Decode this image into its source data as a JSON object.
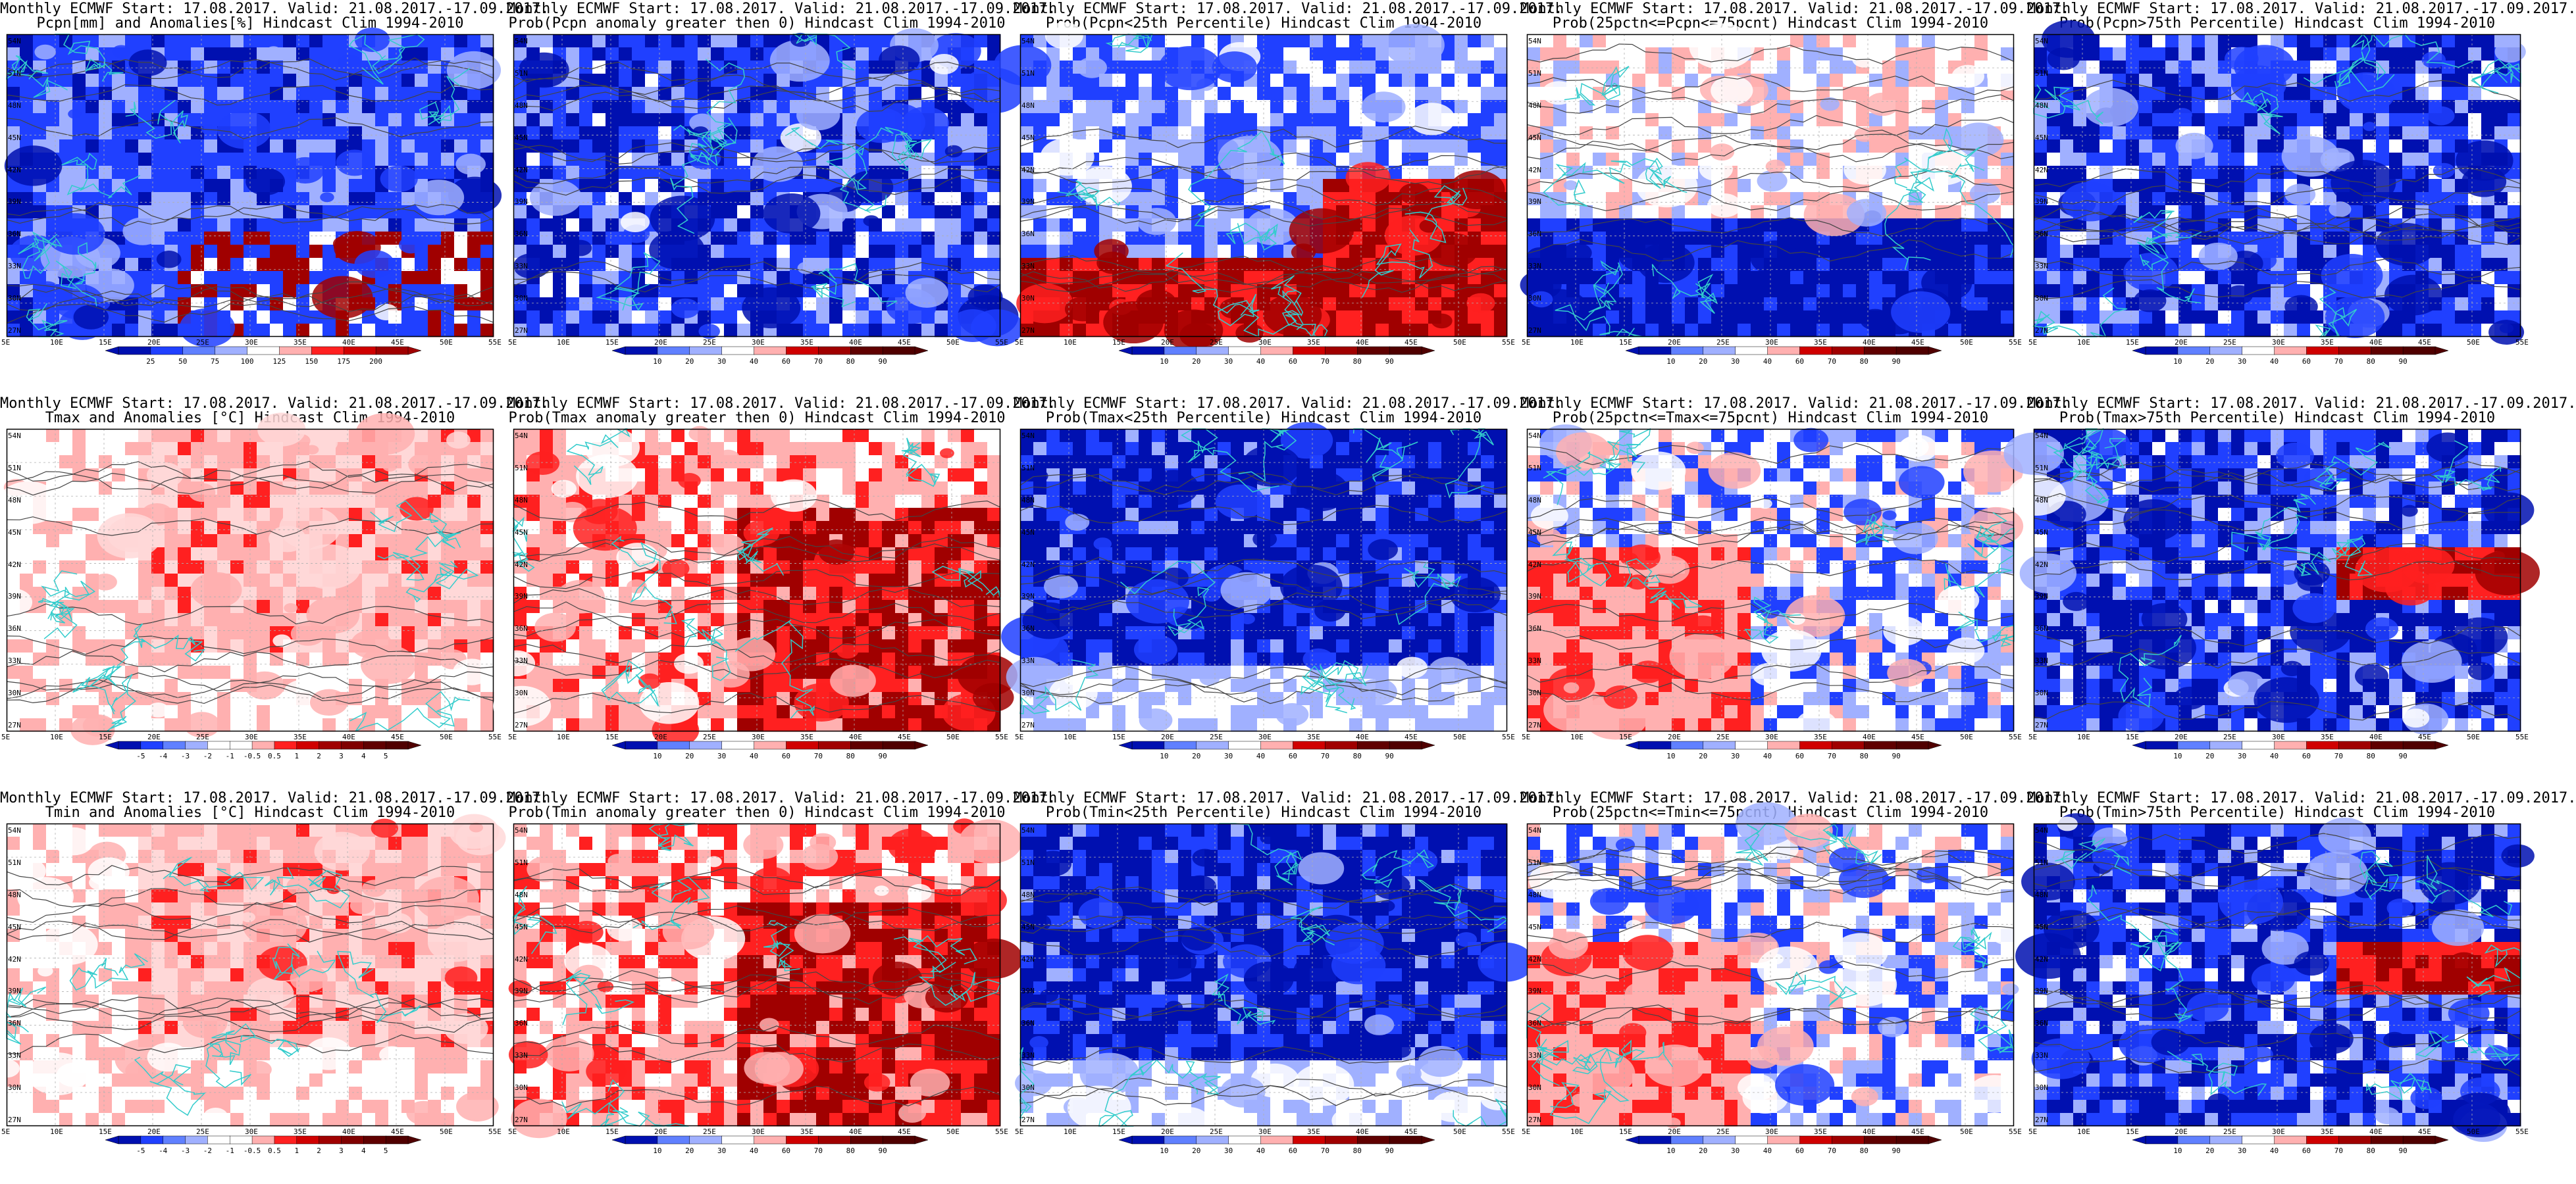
{
  "layout": {
    "columns": 5,
    "rows": 3
  },
  "axes": {
    "lat_labels": [
      "54N",
      "51N",
      "48N",
      "45N",
      "42N",
      "39N",
      "36N",
      "33N",
      "30N",
      "27N"
    ],
    "lon_labels": [
      "5E",
      "10E",
      "15E",
      "20E",
      "25E",
      "30E",
      "35E",
      "40E",
      "45E",
      "50E",
      "55E"
    ],
    "lon_range": [
      5,
      55
    ],
    "lat_range": [
      25,
      55
    ]
  },
  "colors": {
    "coast": "#33cccc",
    "contour": "#444444",
    "blue_dark": "#0010b0",
    "blue": "#2040ff",
    "blue_light": "#a0b0ff",
    "red_light": "#ffb0b0",
    "red": "#ff2020",
    "red_dark": "#a00000"
  },
  "scales": {
    "pcpn_anom": [
      "25",
      "50",
      "75",
      "100",
      "125",
      "150",
      "175",
      "200"
    ],
    "temp_anom": [
      "-5",
      "-4",
      "-3",
      "-2",
      "-1",
      "-0.5",
      "0.5",
      "1",
      "2",
      "3",
      "4",
      "5"
    ],
    "prob": [
      "10",
      "20",
      "30",
      "40",
      "60",
      "70",
      "80",
      "90"
    ]
  },
  "panels": [
    {
      "title1": "Monthly ECMWF Start: 17.08.2017. Valid: 21.08.2017.-17.09.2017.",
      "title2": "Pcpn[mm] and Anomalies[%] Hindcast Clim 1994-2010",
      "scale": "pcpn_anom",
      "theme": "pcpn_anom"
    },
    {
      "title1": "Monthly ECMWF Start: 17.08.2017. Valid: 21.08.2017.-17.09.2017.",
      "title2": "Prob(Pcpn anomaly greater then 0) Hindcast Clim 1994-2010",
      "scale": "prob",
      "theme": "blue"
    },
    {
      "title1": "Monthly ECMWF Start: 17.08.2017. Valid: 21.08.2017.-17.09.2017.",
      "title2": "Prob(Pcpn<25th Percentile) Hindcast Clim 1994-2010",
      "scale": "prob",
      "theme": "mixed_south_red"
    },
    {
      "title1": "Monthly ECMWF Start: 17.08.2017. Valid: 21.08.2017.-17.09.2017.",
      "title2": "Prob(25pctn<=Pcpn<=75pcnt) Hindcast Clim 1994-2010",
      "scale": "prob",
      "theme": "mixed_south_blue"
    },
    {
      "title1": "Monthly ECMWF Start: 17.08.2017. Valid: 21.08.2017.-17.09.2017.",
      "title2": "Prob(Pcpn>75th Percentile) Hindcast Clim 1994-2010",
      "scale": "prob",
      "theme": "blue"
    },
    {
      "title1": "Monthly ECMWF Start: 17.08.2017. Valid: 21.08.2017.-17.09.2017.",
      "title2": "Tmax and Anomalies [°C] Hindcast Clim 1994-2010",
      "scale": "temp_anom",
      "theme": "light_red"
    },
    {
      "title1": "Monthly ECMWF Start: 17.08.2017. Valid: 21.08.2017.-17.09.2017.",
      "title2": "Prob(Tmax anomaly greater then 0) Hindcast Clim 1994-2010",
      "scale": "prob",
      "theme": "red"
    },
    {
      "title1": "Monthly ECMWF Start: 17.08.2017. Valid: 21.08.2017.-17.09.2017.",
      "title2": "Prob(Tmax<25th Percentile) Hindcast Clim 1994-2010",
      "scale": "prob",
      "theme": "deep_blue"
    },
    {
      "title1": "Monthly ECMWF Start: 17.08.2017. Valid: 21.08.2017.-17.09.2017.",
      "title2": "Prob(25pctn<=Tmax<=75pcnt) Hindcast Clim 1994-2010",
      "scale": "prob",
      "theme": "mixed_light"
    },
    {
      "title1": "Monthly ECMWF Start: 17.08.2017. Valid: 21.08.2017.-17.09.2017.",
      "title2": "Prob(Tmax>75th Percentile) Hindcast Clim 1994-2010",
      "scale": "prob",
      "theme": "blue_red"
    },
    {
      "title1": "Monthly ECMWF Start: 17.08.2017. Valid: 21.08.2017.-17.09.2017.",
      "title2": "Tmin and Anomalies [°C] Hindcast Clim 1994-2010",
      "scale": "temp_anom",
      "theme": "light_red"
    },
    {
      "title1": "Monthly ECMWF Start: 17.08.2017. Valid: 21.08.2017.-17.09.2017.",
      "title2": "Prob(Tmin anomaly greater then 0) Hindcast Clim 1994-2010",
      "scale": "prob",
      "theme": "red"
    },
    {
      "title1": "Monthly ECMWF Start: 17.08.2017. Valid: 21.08.2017.-17.09.2017.",
      "title2": "Prob(Tmin<25th Percentile) Hindcast Clim 1994-2010",
      "scale": "prob",
      "theme": "deep_blue"
    },
    {
      "title1": "Monthly ECMWF Start: 17.08.2017. Valid: 21.08.2017.-17.09.2017.",
      "title2": "Prob(25pctn<=Tmin<=75pcnt) Hindcast Clim 1994-2010",
      "scale": "prob",
      "theme": "mixed_light"
    },
    {
      "title1": "Monthly ECMWF Start: 17.08.2017. Valid: 21.08.2017.-17.09.2017.",
      "title2": "Prob(Tmin>75th Percentile) Hindcast Clim 1994-2010",
      "scale": "prob",
      "theme": "blue_red"
    }
  ]
}
